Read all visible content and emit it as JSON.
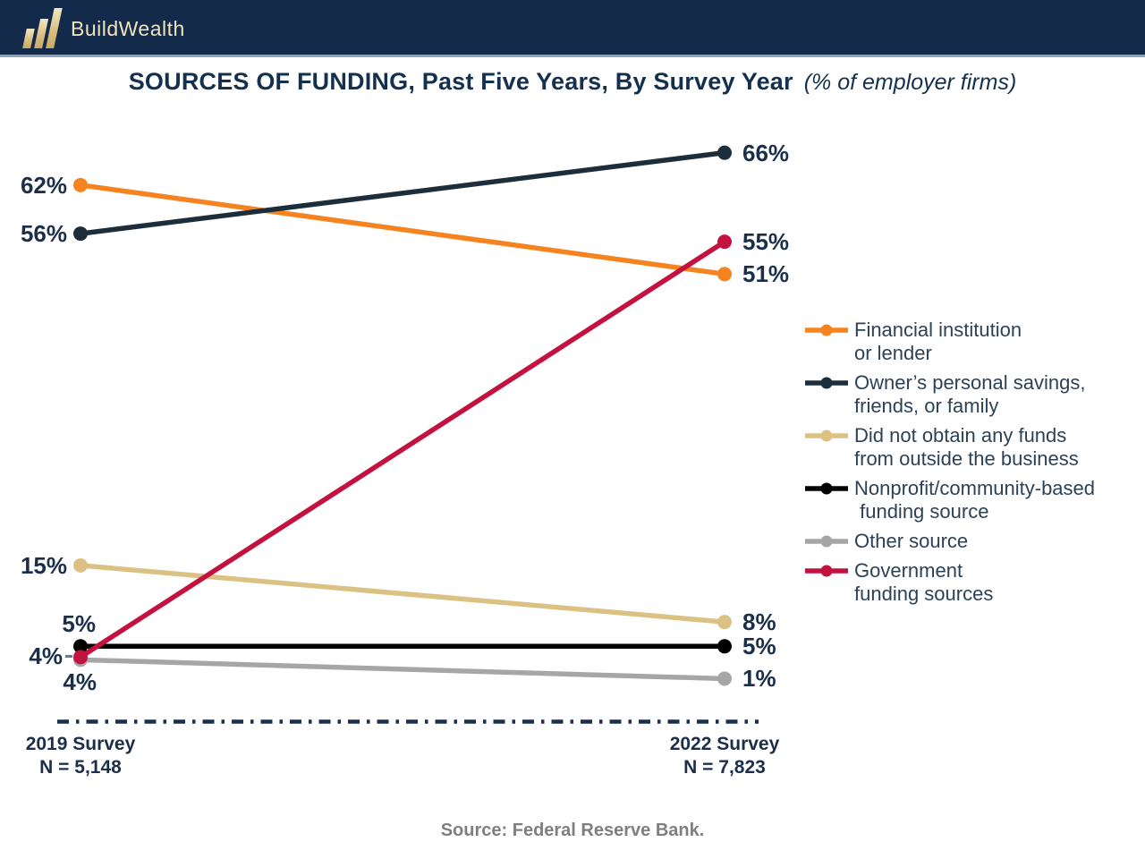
{
  "brand": {
    "name": "BuildWealth",
    "header_bg": "#132A4B",
    "logo_gold": "#D9BC7C"
  },
  "chart_data": {
    "type": "line",
    "title": "SOURCES OF FUNDING, Past Five Years, By Survey Year",
    "subtitle": "(% of employer firms)",
    "unit": "%",
    "categories": [
      "2019 Survey",
      "2022 Survey"
    ],
    "category_sublabels": [
      "N = 5,148",
      "N = 7,823"
    ],
    "ylim": [
      0,
      70
    ],
    "grid": false,
    "legend_position": "right",
    "series": [
      {
        "id": "financial",
        "name": "Financial institution or lender",
        "name_lines": [
          "Financial institution",
          "or lender"
        ],
        "color": "#F5831F",
        "values": [
          62,
          51
        ]
      },
      {
        "id": "owners",
        "name": "Owner’s personal savings, friends, or family",
        "name_lines": [
          "Owner’s personal savings,",
          "friends, or family"
        ],
        "color": "#1C2E3B",
        "values": [
          56,
          66
        ]
      },
      {
        "id": "didnot",
        "name": "Did not obtain any funds from outside the business",
        "name_lines": [
          "Did not obtain any funds",
          "from outside the business"
        ],
        "color": "#DBC284",
        "values": [
          15,
          8
        ]
      },
      {
        "id": "nonprofit",
        "name": "Nonprofit/community-based funding source",
        "name_lines": [
          "Nonprofit/community-based",
          " funding source"
        ],
        "color": "#000000",
        "values": [
          5,
          5
        ]
      },
      {
        "id": "other",
        "name": "Other source",
        "name_lines": [
          "Other source"
        ],
        "color": "#A6A6A6",
        "values": [
          4,
          1
        ]
      },
      {
        "id": "government",
        "name": "Government funding sources",
        "name_lines": [
          "Government",
          "funding sources"
        ],
        "color": "#C41240",
        "values": [
          4,
          55
        ]
      }
    ],
    "source": "Source: Federal Reserve Bank."
  }
}
